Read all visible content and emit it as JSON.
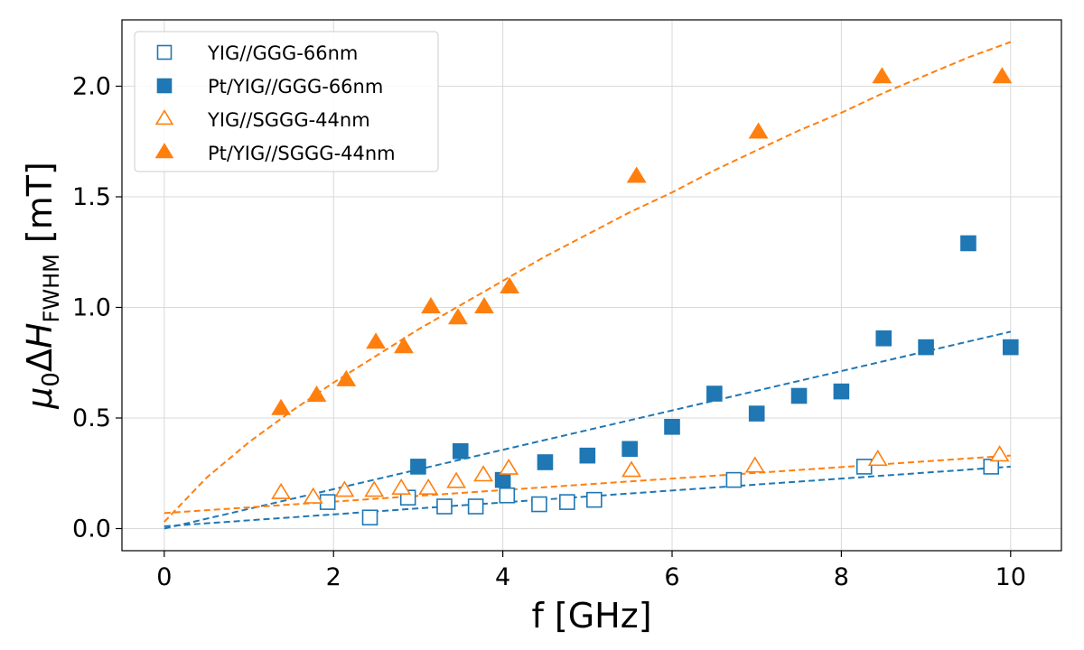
{
  "chart_data": {
    "type": "scatter",
    "title": "",
    "xlabel": "f [GHz]",
    "ylabel": {
      "prefix": "μ",
      "sub0": "0",
      "delta": "Δ",
      "H": "H",
      "subscript": "FWHM",
      "unit": " [mT]"
    },
    "xlim": [
      -0.5,
      10.6
    ],
    "ylim": [
      -0.1,
      2.3
    ],
    "xticks": [
      0,
      2,
      4,
      6,
      8,
      10
    ],
    "yticks": [
      0.0,
      0.5,
      1.0,
      1.5,
      2.0
    ],
    "xtick_labels": [
      "0",
      "2",
      "4",
      "6",
      "8",
      "10"
    ],
    "ytick_labels": [
      "0.0",
      "0.5",
      "1.0",
      "1.5",
      "2.0"
    ],
    "grid": true,
    "legend_position": "top-left",
    "colors": {
      "blue": "#1f77b4",
      "orange": "#ff7f0e"
    },
    "series": [
      {
        "name": "YIG//GGG-66nm",
        "marker": "square",
        "filled": false,
        "color": "#1f77b4",
        "x": [
          1.93,
          2.43,
          2.88,
          3.31,
          3.68,
          4.05,
          4.43,
          4.76,
          5.08,
          6.73,
          8.27,
          9.77
        ],
        "y": [
          0.12,
          0.05,
          0.14,
          0.1,
          0.1,
          0.15,
          0.11,
          0.12,
          0.13,
          0.22,
          0.28,
          0.28
        ],
        "fit": {
          "x": [
            0,
            10
          ],
          "y": [
            0.01,
            0.28
          ]
        }
      },
      {
        "name": "Pt/YIG//GGG-66nm",
        "marker": "square",
        "filled": true,
        "color": "#1f77b4",
        "x": [
          3.0,
          3.5,
          4.0,
          4.5,
          5.0,
          5.5,
          6.0,
          6.5,
          7.0,
          7.5,
          8.0,
          8.5,
          9.0,
          9.5,
          10.0
        ],
        "y": [
          0.28,
          0.35,
          0.22,
          0.3,
          0.33,
          0.36,
          0.46,
          0.61,
          0.52,
          0.6,
          0.62,
          0.86,
          0.82,
          1.29,
          0.82
        ],
        "fit": {
          "x": [
            0,
            10
          ],
          "y": [
            0.0,
            0.89
          ]
        }
      },
      {
        "name": "YIG//SGGG-44nm",
        "marker": "triangle",
        "filled": false,
        "color": "#ff7f0e",
        "x": [
          1.38,
          1.76,
          2.13,
          2.48,
          2.8,
          3.12,
          3.45,
          3.77,
          4.07,
          5.52,
          6.98,
          8.43,
          9.87
        ],
        "y": [
          0.16,
          0.14,
          0.17,
          0.17,
          0.18,
          0.18,
          0.21,
          0.24,
          0.27,
          0.26,
          0.28,
          0.31,
          0.33
        ],
        "fit": {
          "x": [
            0,
            10
          ],
          "y": [
            0.07,
            0.33
          ]
        }
      },
      {
        "name": "Pt/YIG//SGGG-44nm",
        "marker": "triangle",
        "filled": true,
        "color": "#ff7f0e",
        "x": [
          1.38,
          1.8,
          2.15,
          2.5,
          2.83,
          3.15,
          3.47,
          3.78,
          4.08,
          5.58,
          7.02,
          8.48,
          9.9
        ],
        "y": [
          0.54,
          0.6,
          0.67,
          0.84,
          0.82,
          1.0,
          0.95,
          1.0,
          1.09,
          1.59,
          1.79,
          2.04,
          2.04
        ],
        "fit": {
          "x": [
            0,
            0.5,
            1,
            1.5,
            2,
            2.5,
            3,
            3.5,
            4,
            4.5,
            5,
            5.5,
            6,
            6.5,
            7,
            7.5,
            8,
            8.5,
            9,
            9.5,
            10
          ],
          "y": [
            0.03,
            0.23,
            0.39,
            0.53,
            0.66,
            0.78,
            0.9,
            1.01,
            1.12,
            1.23,
            1.33,
            1.43,
            1.52,
            1.62,
            1.71,
            1.8,
            1.88,
            1.97,
            2.05,
            2.13,
            2.2
          ]
        }
      }
    ]
  }
}
